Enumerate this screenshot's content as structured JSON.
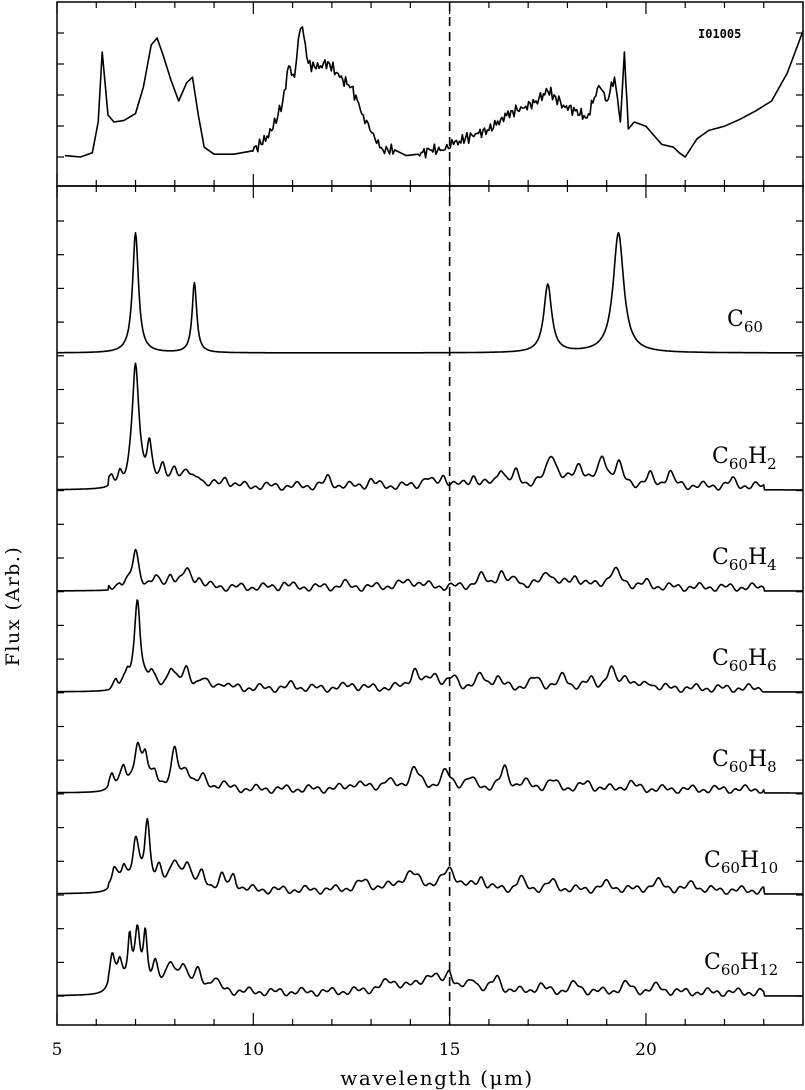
{
  "chart_data": {
    "type": "line",
    "xlabel": "wavelength (μm)",
    "ylabel": "Flux (Arb.)",
    "xlim": [
      5,
      24
    ],
    "x_ticks": [
      "5",
      "10",
      "15",
      "20"
    ],
    "reference_line_x": 15,
    "top_panel": {
      "label": "I01005",
      "series": {
        "name": "I01005",
        "x": [
          5.2,
          5.6,
          5.9,
          6.05,
          6.15,
          6.3,
          6.45,
          6.7,
          7.0,
          7.2,
          7.4,
          7.55,
          7.7,
          7.9,
          8.1,
          8.3,
          8.45,
          8.6,
          8.75,
          9.0,
          9.5,
          9.9,
          10.2,
          10.5,
          10.75,
          10.9,
          11.05,
          11.15,
          11.25,
          11.4,
          11.6,
          11.9,
          12.2,
          12.5,
          12.8,
          13.1,
          13.3,
          13.6,
          13.9,
          14.2,
          14.5,
          14.8,
          15.1,
          15.4,
          15.7,
          16.0,
          16.3,
          16.6,
          16.9,
          17.2,
          17.5,
          17.7,
          17.9,
          18.2,
          18.5,
          18.8,
          18.9,
          19.0,
          19.2,
          19.35,
          19.45,
          19.55,
          19.7,
          20.0,
          20.4,
          20.7,
          20.85,
          21.0,
          21.3,
          21.6,
          22.0,
          22.4,
          22.8,
          23.2,
          23.6,
          24.0
        ],
        "y": [
          0.06,
          0.05,
          0.08,
          0.3,
          0.8,
          0.35,
          0.3,
          0.31,
          0.36,
          0.55,
          0.85,
          0.9,
          0.78,
          0.6,
          0.45,
          0.58,
          0.62,
          0.35,
          0.12,
          0.07,
          0.07,
          0.09,
          0.14,
          0.25,
          0.45,
          0.7,
          0.62,
          0.9,
          0.98,
          0.72,
          0.68,
          0.73,
          0.62,
          0.55,
          0.35,
          0.18,
          0.1,
          0.1,
          0.06,
          0.07,
          0.1,
          0.1,
          0.14,
          0.18,
          0.22,
          0.24,
          0.32,
          0.38,
          0.4,
          0.45,
          0.52,
          0.48,
          0.42,
          0.38,
          0.33,
          0.56,
          0.52,
          0.45,
          0.62,
          0.3,
          0.8,
          0.25,
          0.3,
          0.27,
          0.14,
          0.12,
          0.08,
          0.05,
          0.18,
          0.24,
          0.27,
          0.32,
          0.38,
          0.45,
          0.65,
          0.95
        ]
      }
    },
    "bottom_panel": {
      "series": [
        {
          "name": "C60",
          "peaks": [
            [
              7.0,
              0.09,
              6.0
            ],
            [
              8.5,
              0.07,
              3.5
            ],
            [
              17.5,
              0.12,
              3.4
            ],
            [
              19.3,
              0.16,
              6.0
            ]
          ]
        },
        {
          "name": "C60H2",
          "peaks": [
            [
              6.4,
              0.06,
              0.3
            ],
            [
              6.6,
              0.06,
              0.5
            ],
            [
              7.0,
              0.1,
              6.0
            ],
            [
              7.35,
              0.08,
              2.0
            ],
            [
              7.7,
              0.08,
              0.7
            ],
            [
              8.0,
              0.1,
              0.9
            ],
            [
              8.3,
              0.1,
              0.6
            ],
            [
              8.6,
              0.1,
              0.5
            ],
            [
              9.3,
              0.1,
              0.4
            ],
            [
              11.9,
              0.1,
              0.4
            ],
            [
              13.0,
              0.1,
              0.3
            ],
            [
              14.4,
              0.12,
              0.4
            ],
            [
              14.85,
              0.1,
              0.5
            ],
            [
              15.6,
              0.1,
              0.5
            ],
            [
              16.3,
              0.1,
              0.9
            ],
            [
              16.7,
              0.1,
              0.6
            ],
            [
              17.6,
              0.15,
              1.6
            ],
            [
              18.3,
              0.15,
              1.0
            ],
            [
              18.9,
              0.12,
              1.4
            ],
            [
              19.3,
              0.12,
              1.0
            ],
            [
              20.1,
              0.1,
              0.5
            ],
            [
              20.6,
              0.1,
              0.7
            ],
            [
              22.2,
              0.1,
              0.3
            ]
          ]
        },
        {
          "name": "C60H4",
          "peaks": [
            [
              6.6,
              0.06,
              0.2
            ],
            [
              7.0,
              0.1,
              1.8
            ],
            [
              7.5,
              0.08,
              0.4
            ],
            [
              7.9,
              0.1,
              0.6
            ],
            [
              8.3,
              0.12,
              0.8
            ],
            [
              8.6,
              0.1,
              0.4
            ],
            [
              10.8,
              0.1,
              0.2
            ],
            [
              12.3,
              0.1,
              0.2
            ],
            [
              14.0,
              0.3,
              0.3
            ],
            [
              15.8,
              0.15,
              0.5
            ],
            [
              16.3,
              0.12,
              0.7
            ],
            [
              16.7,
              0.1,
              0.4
            ],
            [
              17.5,
              0.15,
              0.8
            ],
            [
              18.2,
              0.15,
              0.5
            ],
            [
              19.2,
              0.2,
              0.8
            ],
            [
              20.0,
              0.1,
              0.2
            ]
          ]
        },
        {
          "name": "C60H6",
          "peaks": [
            [
              6.5,
              0.06,
              0.4
            ],
            [
              6.8,
              0.06,
              0.5
            ],
            [
              7.05,
              0.09,
              4.5
            ],
            [
              7.4,
              0.08,
              0.6
            ],
            [
              7.9,
              0.1,
              1.0
            ],
            [
              8.3,
              0.12,
              0.9
            ],
            [
              8.7,
              0.1,
              0.4
            ],
            [
              9.2,
              0.1,
              0.3
            ],
            [
              11.0,
              0.1,
              0.2
            ],
            [
              12.5,
              0.15,
              0.2
            ],
            [
              14.1,
              0.12,
              0.9
            ],
            [
              14.6,
              0.15,
              0.7
            ],
            [
              15.1,
              0.12,
              0.5
            ],
            [
              15.8,
              0.12,
              0.6
            ],
            [
              16.2,
              0.12,
              0.5
            ],
            [
              17.2,
              0.15,
              0.5
            ],
            [
              17.9,
              0.12,
              0.6
            ],
            [
              18.6,
              0.12,
              0.4
            ],
            [
              19.1,
              0.12,
              0.9
            ],
            [
              19.5,
              0.12,
              0.6
            ],
            [
              20.1,
              0.1,
              0.3
            ]
          ]
        },
        {
          "name": "C60H8",
          "peaks": [
            [
              6.4,
              0.08,
              0.7
            ],
            [
              6.7,
              0.08,
              0.9
            ],
            [
              7.05,
              0.1,
              2.2
            ],
            [
              7.25,
              0.08,
              1.4
            ],
            [
              7.5,
              0.08,
              0.7
            ],
            [
              8.0,
              0.1,
              1.8
            ],
            [
              8.3,
              0.12,
              0.9
            ],
            [
              8.7,
              0.12,
              0.5
            ],
            [
              9.2,
              0.1,
              0.3
            ],
            [
              12.6,
              0.2,
              0.3
            ],
            [
              13.4,
              0.15,
              0.4
            ],
            [
              14.1,
              0.15,
              1.0
            ],
            [
              14.9,
              0.15,
              0.8
            ],
            [
              15.5,
              0.15,
              0.5
            ],
            [
              16.4,
              0.12,
              1.0
            ],
            [
              16.9,
              0.15,
              0.3
            ],
            [
              17.6,
              0.15,
              0.4
            ],
            [
              18.5,
              0.15,
              0.3
            ],
            [
              19.6,
              0.15,
              0.3
            ]
          ]
        },
        {
          "name": "C60H10",
          "peaks": [
            [
              6.45,
              0.08,
              0.9
            ],
            [
              6.7,
              0.08,
              1.0
            ],
            [
              7.0,
              0.1,
              2.4
            ],
            [
              7.3,
              0.08,
              3.0
            ],
            [
              7.6,
              0.1,
              1.0
            ],
            [
              8.0,
              0.12,
              1.2
            ],
            [
              8.3,
              0.12,
              1.3
            ],
            [
              8.7,
              0.1,
              0.7
            ],
            [
              9.2,
              0.1,
              0.6
            ],
            [
              9.5,
              0.08,
              0.7
            ],
            [
              12.8,
              0.2,
              0.4
            ],
            [
              14.0,
              0.3,
              0.8
            ],
            [
              15.0,
              0.2,
              1.0
            ],
            [
              15.8,
              0.12,
              0.6
            ],
            [
              16.8,
              0.1,
              0.6
            ],
            [
              17.6,
              0.15,
              0.4
            ],
            [
              19.0,
              0.2,
              0.3
            ],
            [
              20.3,
              0.2,
              0.4
            ],
            [
              21.2,
              0.1,
              0.4
            ]
          ]
        },
        {
          "name": "C60H12",
          "peaks": [
            [
              6.4,
              0.08,
              1.5
            ],
            [
              6.6,
              0.08,
              1.4
            ],
            [
              6.85,
              0.06,
              2.6
            ],
            [
              7.05,
              0.08,
              2.7
            ],
            [
              7.25,
              0.06,
              2.4
            ],
            [
              7.5,
              0.1,
              1.3
            ],
            [
              7.9,
              0.12,
              1.2
            ],
            [
              8.2,
              0.12,
              1.3
            ],
            [
              8.6,
              0.12,
              0.9
            ],
            [
              9.0,
              0.12,
              0.6
            ],
            [
              13.5,
              0.3,
              0.5
            ],
            [
              14.5,
              0.3,
              0.8
            ],
            [
              15.0,
              0.1,
              0.9
            ],
            [
              15.6,
              0.12,
              0.6
            ],
            [
              16.2,
              0.12,
              0.7
            ],
            [
              17.3,
              0.15,
              0.3
            ],
            [
              18.2,
              0.15,
              0.4
            ],
            [
              19.5,
              0.15,
              0.4
            ],
            [
              20.3,
              0.15,
              0.3
            ]
          ]
        }
      ]
    }
  }
}
